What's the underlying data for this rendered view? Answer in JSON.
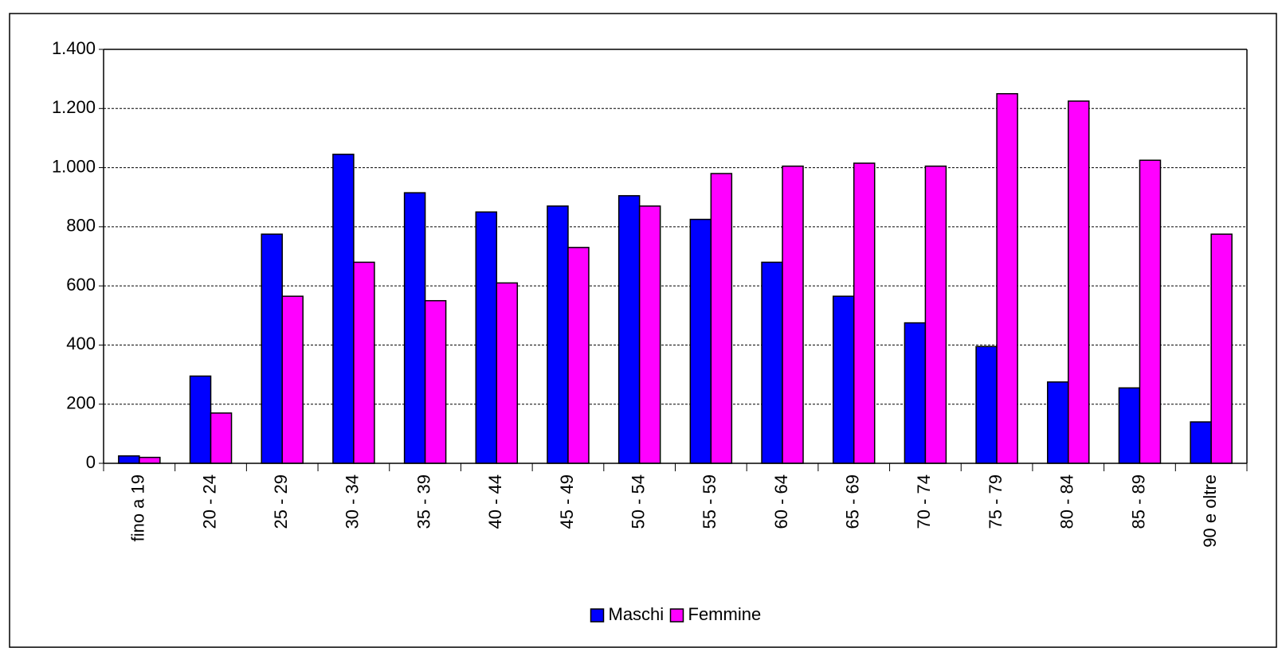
{
  "chart_data": {
    "type": "bar",
    "categories": [
      "fino a 19",
      "20 - 24",
      "25 - 29",
      "30 - 34",
      "35 - 39",
      "40 - 44",
      "45 - 49",
      "50 - 54",
      "55 - 59",
      "60 - 64",
      "65 - 69",
      "70 - 74",
      "75 - 79",
      "80 - 84",
      "85 - 89",
      "90 e oltre"
    ],
    "series": [
      {
        "name": "Maschi",
        "color": "#0000ff",
        "values": [
          25,
          295,
          775,
          1045,
          915,
          850,
          870,
          905,
          825,
          680,
          565,
          475,
          395,
          275,
          255,
          140
        ]
      },
      {
        "name": "Femmine",
        "color": "#ff00ff",
        "values": [
          20,
          170,
          565,
          680,
          550,
          610,
          730,
          870,
          980,
          1005,
          1015,
          1005,
          1250,
          1225,
          1025,
          775
        ]
      }
    ],
    "ylim": [
      0,
      1400
    ],
    "yticks": [
      0,
      200,
      400,
      600,
      800,
      {
        "value": 1000,
        "label": "1.000"
      },
      {
        "value": 1200,
        "label": "1.200"
      },
      {
        "value": 1400,
        "label": "1.400"
      }
    ],
    "grid": true,
    "legend": "bottom"
  }
}
